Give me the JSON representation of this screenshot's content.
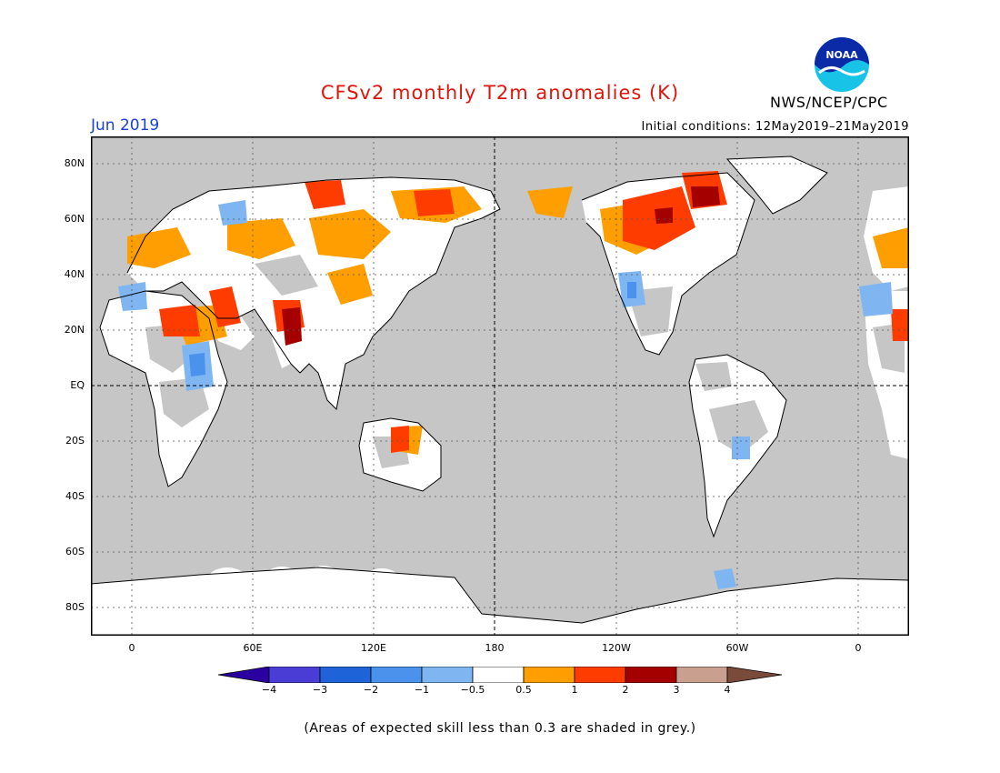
{
  "header": {
    "title": "CFSv2 monthly T2m anomalies (K)",
    "month": "Jun 2019",
    "initial_conditions": "Initial conditions: 12May2019–21May2019",
    "agency": "NWS/NCEP/CPC",
    "logo_text": "NOAA"
  },
  "map": {
    "latitude_labels": [
      "80N",
      "60N",
      "40N",
      "20N",
      "EQ",
      "20S",
      "40S",
      "60S",
      "80S"
    ],
    "longitude_labels": [
      "0",
      "60E",
      "120E",
      "180",
      "120W",
      "60W",
      "0"
    ],
    "colors": {
      "ocean_low_skill": "#c6c6c6",
      "land_neutral": "#ffffff",
      "warm_0_5_to_1": "#ff9e00",
      "warm_1_to_2": "#ff3c00",
      "warm_2_to_3": "#a50000",
      "cool_minus1_to_minus0_5": "#7fb6f2",
      "cool_minus2_to_minus1": "#4a92ec"
    }
  },
  "colorbar": {
    "labels": [
      "−4",
      "−3",
      "−2",
      "−1",
      "−0.5",
      "0.5",
      "1",
      "2",
      "3",
      "4"
    ],
    "colors": [
      "#2a00a0",
      "#4a3dd6",
      "#1e64d8",
      "#4a92ec",
      "#7fb6f2",
      "#ffffff",
      "#ff9e00",
      "#ff3c00",
      "#a50000",
      "#c9a090",
      "#7a4a3a"
    ]
  },
  "footnote": "(Areas of expected skill less than 0.3 are shaded in grey.)"
}
